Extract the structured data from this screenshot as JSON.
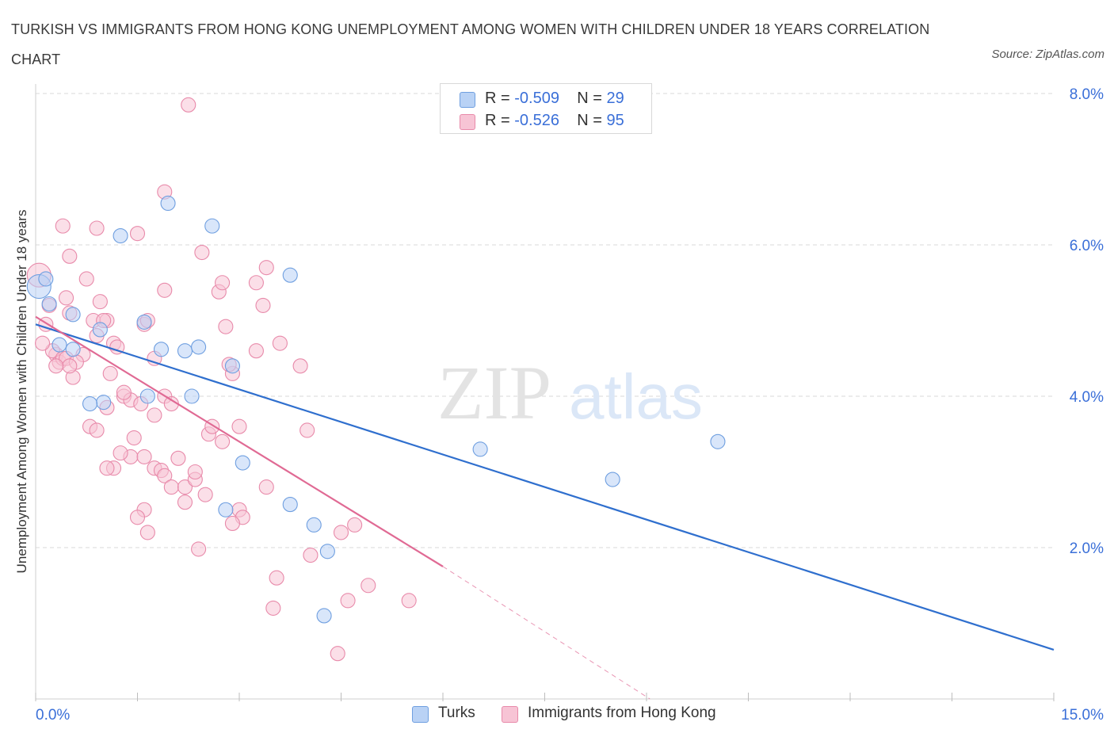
{
  "title": "TURKISH VS IMMIGRANTS FROM HONG KONG UNEMPLOYMENT AMONG WOMEN WITH CHILDREN UNDER 18 YEARS CORRELATION CHART",
  "source": "Source: ZipAtlas.com",
  "watermark": {
    "zip": "ZIP",
    "atlas": "atlas"
  },
  "legend": {
    "r_label": "R =",
    "n_label": "N =",
    "turks": {
      "r": "-0.509",
      "n": "29"
    },
    "hk": {
      "r": "-0.526",
      "n": "95"
    }
  },
  "colors": {
    "turks_fill": "#b9d2f5",
    "turks_stroke": "#6f9fe0",
    "turks_line": "#2f6fce",
    "hk_fill": "#f7c4d5",
    "hk_stroke": "#e88aaa",
    "hk_line": "#e06a94",
    "axis_label": "#3a6fd8",
    "grid": "#d9d9d9"
  },
  "chart_data": {
    "type": "scatter",
    "title": "TURKISH VS IMMIGRANTS FROM HONG KONG UNEMPLOYMENT AMONG WOMEN WITH CHILDREN UNDER 18 YEARS CORRELATION CHART",
    "xlabel": "",
    "ylabel": "Unemployment Among Women with Children Under 18 years",
    "xlim": [
      0,
      15
    ],
    "ylim": [
      0,
      8
    ],
    "x_tick_labels": [
      "0.0%",
      "15.0%"
    ],
    "y_ticks": [
      2,
      4,
      6,
      8
    ],
    "y_tick_labels": [
      "2.0%",
      "4.0%",
      "6.0%",
      "8.0%"
    ],
    "grid": true,
    "legend_position": "top-center",
    "series": [
      {
        "name": "Turks",
        "r": -0.509,
        "n": 29,
        "trend": {
          "x": [
            0,
            15
          ],
          "y": [
            4.95,
            0.65
          ]
        },
        "points": [
          [
            0.05,
            5.45
          ],
          [
            0.2,
            5.22
          ],
          [
            0.55,
            5.08
          ],
          [
            0.35,
            4.68
          ],
          [
            0.55,
            4.62
          ],
          [
            0.95,
            4.88
          ],
          [
            1.6,
            4.98
          ],
          [
            1.85,
            4.62
          ],
          [
            2.2,
            4.6
          ],
          [
            2.4,
            4.65
          ],
          [
            1.25,
            6.12
          ],
          [
            1.95,
            6.55
          ],
          [
            2.6,
            6.25
          ],
          [
            1.0,
            3.92
          ],
          [
            0.8,
            3.9
          ],
          [
            1.65,
            4.0
          ],
          [
            2.3,
            4.0
          ],
          [
            2.9,
            4.4
          ],
          [
            3.05,
            3.12
          ],
          [
            3.75,
            5.6
          ],
          [
            2.8,
            2.5
          ],
          [
            3.75,
            2.57
          ],
          [
            4.1,
            2.3
          ],
          [
            4.3,
            1.95
          ],
          [
            4.25,
            1.1
          ],
          [
            6.55,
            3.3
          ],
          [
            8.5,
            2.9
          ],
          [
            10.05,
            3.4
          ],
          [
            0.15,
            5.55
          ]
        ]
      },
      {
        "name": "Immigrants from Hong Kong",
        "r": -0.526,
        "n": 95,
        "trend": {
          "x": [
            0,
            6
          ],
          "y": [
            5.05,
            1.75
          ]
        },
        "trend_dashed": {
          "x": [
            6,
            9.05
          ],
          "y": [
            1.75,
            0.0
          ]
        },
        "points": [
          [
            0.05,
            5.6
          ],
          [
            0.2,
            5.2
          ],
          [
            0.15,
            4.95
          ],
          [
            0.5,
            5.1
          ],
          [
            0.3,
            4.55
          ],
          [
            0.35,
            4.45
          ],
          [
            0.25,
            4.6
          ],
          [
            0.4,
            4.5
          ],
          [
            0.55,
            4.25
          ],
          [
            0.7,
            4.55
          ],
          [
            0.45,
            4.5
          ],
          [
            0.75,
            5.55
          ],
          [
            0.5,
            5.85
          ],
          [
            0.9,
            6.22
          ],
          [
            0.4,
            6.25
          ],
          [
            0.85,
            5.0
          ],
          [
            0.95,
            5.25
          ],
          [
            1.05,
            5.0
          ],
          [
            0.9,
            4.8
          ],
          [
            1.15,
            4.7
          ],
          [
            1.1,
            4.3
          ],
          [
            1.3,
            4.0
          ],
          [
            1.4,
            3.95
          ],
          [
            1.55,
            3.9
          ],
          [
            1.75,
            3.75
          ],
          [
            1.9,
            4.0
          ],
          [
            2.0,
            3.9
          ],
          [
            1.45,
            3.45
          ],
          [
            0.8,
            3.6
          ],
          [
            0.9,
            3.55
          ],
          [
            1.05,
            3.85
          ],
          [
            1.4,
            3.2
          ],
          [
            1.6,
            3.2
          ],
          [
            1.15,
            3.05
          ],
          [
            1.25,
            3.25
          ],
          [
            1.75,
            3.05
          ],
          [
            1.85,
            3.02
          ],
          [
            2.1,
            3.18
          ],
          [
            1.9,
            2.95
          ],
          [
            2.0,
            2.8
          ],
          [
            2.2,
            2.8
          ],
          [
            2.35,
            2.9
          ],
          [
            2.5,
            2.7
          ],
          [
            2.2,
            2.6
          ],
          [
            1.6,
            2.5
          ],
          [
            1.5,
            2.4
          ],
          [
            1.65,
            2.2
          ],
          [
            2.4,
            1.98
          ],
          [
            2.55,
            3.5
          ],
          [
            2.6,
            3.6
          ],
          [
            2.75,
            3.4
          ],
          [
            3.0,
            3.6
          ],
          [
            2.9,
            4.3
          ],
          [
            2.85,
            4.42
          ],
          [
            2.8,
            4.92
          ],
          [
            3.0,
            2.5
          ],
          [
            3.05,
            2.4
          ],
          [
            2.9,
            2.32
          ],
          [
            2.7,
            5.38
          ],
          [
            2.75,
            5.5
          ],
          [
            2.45,
            5.9
          ],
          [
            3.25,
            5.5
          ],
          [
            3.35,
            5.2
          ],
          [
            3.4,
            5.7
          ],
          [
            3.25,
            4.6
          ],
          [
            3.6,
            4.7
          ],
          [
            3.4,
            2.8
          ],
          [
            3.9,
            4.4
          ],
          [
            4.0,
            3.55
          ],
          [
            3.55,
            1.6
          ],
          [
            3.5,
            1.2
          ],
          [
            4.05,
            1.9
          ],
          [
            4.5,
            2.2
          ],
          [
            4.7,
            2.3
          ],
          [
            4.6,
            1.3
          ],
          [
            4.9,
            1.5
          ],
          [
            5.5,
            1.3
          ],
          [
            4.45,
            0.6
          ],
          [
            2.25,
            7.85
          ],
          [
            1.9,
            6.7
          ],
          [
            1.5,
            6.15
          ],
          [
            1.9,
            5.4
          ],
          [
            1.6,
            4.95
          ],
          [
            1.65,
            5.0
          ],
          [
            1.75,
            4.5
          ],
          [
            1.2,
            4.65
          ],
          [
            1.0,
            5.0
          ],
          [
            0.6,
            4.45
          ],
          [
            0.5,
            4.4
          ],
          [
            1.3,
            4.05
          ],
          [
            0.45,
            5.3
          ],
          [
            0.3,
            4.4
          ],
          [
            1.05,
            3.05
          ],
          [
            2.35,
            3.0
          ],
          [
            0.1,
            4.7
          ]
        ]
      }
    ]
  }
}
